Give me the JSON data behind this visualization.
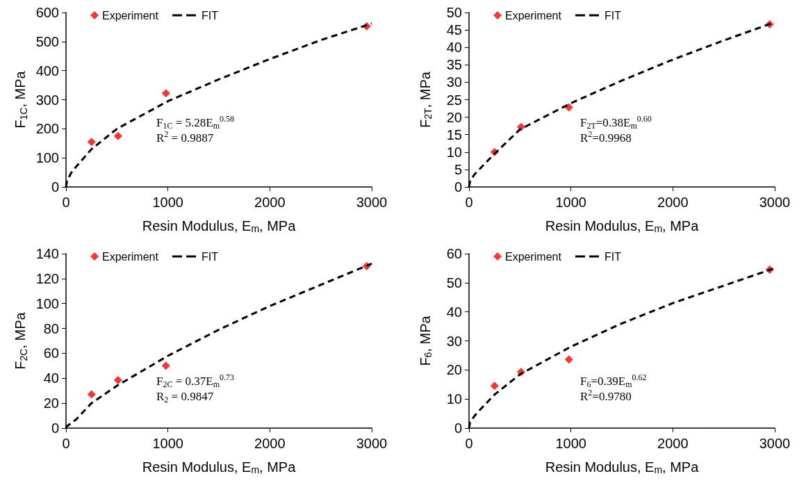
{
  "chart_data": [
    {
      "type": "scatter",
      "xlabel": "Resin Modulus, E$_{m}$, MPa",
      "ylabel": "F$_{1C}$, MPa",
      "xlim": [
        0,
        3000
      ],
      "xticks": [
        0,
        1000,
        2000,
        3000
      ],
      "ylim": [
        0,
        600
      ],
      "yticks": [
        0,
        100,
        200,
        300,
        400,
        500,
        600
      ],
      "grid": false,
      "legend": "top left",
      "annotations": [
        "F$_{1C}$ = 5.28E$_{m}$$^{0.58}$",
        "R$^{2}$ = 0.9887"
      ],
      "series": [
        {
          "name": "Experiment",
          "marker": "diamond",
          "color": "#ff0000",
          "x": [
            250,
            510,
            980,
            2950
          ],
          "values": [
            155,
            175,
            322,
            553
          ]
        },
        {
          "name": "FIT",
          "type": "line",
          "marker": "none",
          "line_style": "dashed",
          "color": "#000000",
          "x": [
            0,
            10,
            50,
            100,
            250,
            500,
            1000,
            1500,
            2000,
            2500,
            3000
          ],
          "values": [
            0,
            20,
            48,
            70,
            130,
            200,
            295,
            370,
            440,
            505,
            562
          ]
        }
      ]
    },
    {
      "type": "scatter",
      "xlabel": "Resin Modulus, E$_{m}$, MPa",
      "ylabel": "F$_{2T}$, MPa",
      "xlim": [
        0,
        3000
      ],
      "xticks": [
        0,
        1000,
        2000,
        3000
      ],
      "ylim": [
        0,
        50
      ],
      "yticks": [
        0,
        5,
        10,
        15,
        20,
        25,
        30,
        35,
        40,
        45,
        50
      ],
      "grid": false,
      "legend": "top left",
      "annotations": [
        "F$_{2T}$=0.38E$_{m}$$^{0.60}$",
        "R$^{2}$=0.9968"
      ],
      "series": [
        {
          "name": "Experiment",
          "marker": "diamond",
          "color": "#ff0000",
          "x": [
            250,
            510,
            980,
            2950
          ],
          "values": [
            10,
            17.2,
            22.8,
            46.6
          ]
        },
        {
          "name": "FIT",
          "type": "line",
          "marker": "none",
          "line_style": "dashed",
          "color": "#000000",
          "x": [
            0,
            10,
            50,
            100,
            250,
            500,
            1000,
            1500,
            2000,
            2500,
            3000
          ],
          "values": [
            0,
            1.5,
            3.5,
            5,
            9.5,
            16.5,
            24,
            30.5,
            36.5,
            42,
            47.2
          ]
        }
      ]
    },
    {
      "type": "scatter",
      "xlabel": "Resin Modulus, E$_{m}$, MPa",
      "ylabel": "F$_{2C}$, MPa",
      "xlim": [
        0,
        3000
      ],
      "xticks": [
        0,
        1000,
        2000,
        3000
      ],
      "ylim": [
        0,
        140
      ],
      "yticks": [
        0,
        20,
        40,
        60,
        80,
        100,
        120,
        140
      ],
      "grid": false,
      "legend": "top left",
      "annotations": [
        "F$_{2C}$ = 0.37E$_{m}$$^{0.73}$",
        "R$_{2}$ = 0.9847"
      ],
      "series": [
        {
          "name": "Experiment",
          "marker": "diamond",
          "color": "#ff0000",
          "x": [
            250,
            510,
            980,
            2950
          ],
          "values": [
            27,
            38.5,
            50,
            130
          ]
        },
        {
          "name": "FIT",
          "type": "line",
          "marker": "none",
          "line_style": "dashed",
          "color": "#000000",
          "x": [
            0,
            10,
            50,
            100,
            250,
            500,
            1000,
            1500,
            2000,
            2500,
            3000
          ],
          "values": [
            0,
            1.5,
            4,
            7,
            20,
            34,
            58,
            79,
            98,
            115,
            132
          ]
        }
      ]
    },
    {
      "type": "scatter",
      "xlabel": "Resin Modulus, E$_{m}$, MPa",
      "ylabel": "F$_{6}$, MPa",
      "xlim": [
        0,
        3000
      ],
      "xticks": [
        0,
        1000,
        2000,
        3000
      ],
      "ylim": [
        0,
        60
      ],
      "yticks": [
        0,
        10,
        20,
        30,
        40,
        50,
        60
      ],
      "grid": false,
      "legend": "top left",
      "annotations": [
        "F$_{6}$=0.39E$_{m}$$^{0.62}$",
        "R$^{2}$=0.9780"
      ],
      "series": [
        {
          "name": "Experiment",
          "marker": "diamond",
          "color": "#ff0000",
          "x": [
            250,
            510,
            980,
            2950
          ],
          "values": [
            14.5,
            19.3,
            23.6,
            54.5
          ]
        },
        {
          "name": "FIT",
          "type": "line",
          "marker": "none",
          "line_style": "dashed",
          "color": "#000000",
          "x": [
            0,
            10,
            50,
            100,
            250,
            500,
            1000,
            1500,
            2000,
            2500,
            3000
          ],
          "values": [
            0,
            2,
            4,
            6,
            11.5,
            18.5,
            28,
            36,
            43,
            49,
            55
          ]
        }
      ]
    }
  ]
}
